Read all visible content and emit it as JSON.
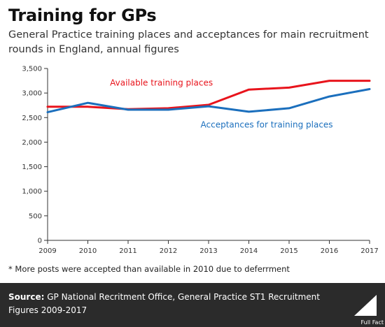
{
  "title": "Training for GPs",
  "subtitle": "General Practice training places and acceptances for main recruitment rounds in England, annual figures",
  "footnote": "* More posts were accepted than available in 2010 due to deferrment",
  "source": {
    "label": "Source:",
    "text": "GP National Recritment Office, General Practice ST1 Recruitment Figures 2009-2017"
  },
  "brand": "Full Fact",
  "colors": {
    "available": "#e8141c",
    "acceptances": "#1b6fbd",
    "background_bar": "#2b2b2b"
  },
  "chart_data": {
    "type": "line",
    "x": [
      2009,
      2010,
      2011,
      2012,
      2013,
      2014,
      2015,
      2016,
      2017
    ],
    "x_tick_labels": [
      "2009",
      "2010",
      "2011",
      "2012",
      "2013",
      "2014",
      "2015",
      "2016",
      "2017"
    ],
    "y_ticks": [
      0,
      500,
      1000,
      1500,
      2000,
      2500,
      3000,
      3500
    ],
    "y_tick_labels": [
      "0",
      "500",
      "1,000",
      "1,500",
      "2,000",
      "2,500",
      "3,000",
      "3,500"
    ],
    "ylim": [
      0,
      3500
    ],
    "xlim": [
      2009,
      2017
    ],
    "grid": false,
    "series": [
      {
        "name": "Available training places",
        "color": "#e8141c",
        "values": [
          2720,
          2720,
          2670,
          2690,
          2760,
          3070,
          3110,
          3250,
          3250
        ]
      },
      {
        "name": "Acceptances  for training places",
        "color": "#1b6fbd",
        "values": [
          2610,
          2800,
          2660,
          2660,
          2730,
          2620,
          2690,
          2930,
          3080
        ]
      }
    ]
  }
}
